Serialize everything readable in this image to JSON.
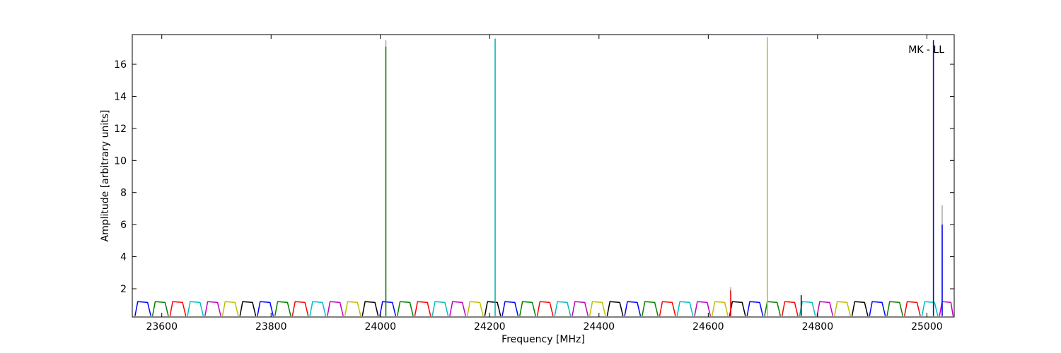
{
  "chart_data": {
    "type": "line",
    "xlabel": "Frequency [MHz]",
    "ylabel": "Amplitude [arbitrary units]",
    "annotation": "MK - LL",
    "xlim": [
      23546,
      25050
    ],
    "ylim": [
      0.24,
      17.85
    ],
    "xticks": [
      23600,
      23800,
      24000,
      24200,
      24400,
      24600,
      24800,
      25000
    ],
    "yticks": [
      2,
      4,
      6,
      8,
      10,
      12,
      14,
      16
    ],
    "grid": false,
    "series": [
      {
        "color": "#aaaaaa",
        "x": [
          24010,
          24010,
          null,
          24210,
          24210,
          null,
          24641,
          24641,
          null,
          24708,
          24708,
          null,
          25012,
          25012,
          null,
          25028,
          25028
        ],
        "values": [
          0.3,
          17.5,
          null,
          0.3,
          17.6,
          null,
          0.3,
          2.1,
          null,
          0.3,
          17.7,
          null,
          0.3,
          17.4,
          null,
          0.3,
          7.2
        ]
      },
      {
        "color": "#0000ff",
        "x": [
          23551,
          23556,
          23574,
          23580,
          null,
          23775,
          23780,
          23798,
          23804,
          null,
          23999,
          24004,
          24022,
          24028,
          null,
          24223,
          24228,
          24246,
          24252,
          null,
          24447,
          24452,
          24470,
          24476,
          null,
          24671,
          24676,
          24694,
          24700,
          null,
          24895,
          24900,
          24918,
          24924
        ],
        "values": [
          0.3,
          1.2,
          1.15,
          0.3,
          null,
          0.3,
          1.2,
          1.15,
          0.3,
          null,
          0.3,
          1.2,
          1.15,
          0.3,
          null,
          0.3,
          1.2,
          1.15,
          0.3,
          null,
          0.3,
          1.2,
          1.15,
          0.3,
          null,
          0.3,
          1.2,
          1.15,
          0.3,
          null,
          0.3,
          1.2,
          1.15,
          0.3
        ]
      },
      {
        "color": "#008000",
        "x": [
          23583,
          23588,
          23606,
          23612,
          null,
          23807,
          23812,
          23830,
          23836,
          null,
          24031,
          24036,
          24054,
          24060,
          null,
          24255,
          24260,
          24278,
          24284,
          null,
          24479,
          24484,
          24502,
          24508,
          null,
          24703,
          24708,
          24726,
          24732,
          null,
          24927,
          24932,
          24950,
          24956
        ],
        "values": [
          0.3,
          1.2,
          1.15,
          0.3,
          null,
          0.3,
          1.2,
          1.15,
          0.3,
          null,
          0.3,
          1.2,
          1.15,
          0.3,
          null,
          0.3,
          1.2,
          1.15,
          0.3,
          null,
          0.3,
          1.2,
          1.15,
          0.3,
          null,
          0.3,
          1.2,
          1.15,
          0.3,
          null,
          0.3,
          1.2,
          1.15,
          0.3
        ]
      },
      {
        "color": "#ff0000",
        "x": [
          23615,
          23620,
          23638,
          23644,
          null,
          23839,
          23844,
          23862,
          23868,
          null,
          24063,
          24068,
          24086,
          24092,
          null,
          24287,
          24292,
          24310,
          24316,
          null,
          24511,
          24516,
          24534,
          24540,
          null,
          24735,
          24740,
          24758,
          24764,
          null,
          24959,
          24964,
          24982,
          24988
        ],
        "values": [
          0.3,
          1.2,
          1.15,
          0.3,
          null,
          0.3,
          1.2,
          1.15,
          0.3,
          null,
          0.3,
          1.2,
          1.15,
          0.3,
          null,
          0.3,
          1.2,
          1.15,
          0.3,
          null,
          0.3,
          1.2,
          1.15,
          0.3,
          null,
          0.3,
          1.2,
          1.15,
          0.3,
          null,
          0.3,
          1.2,
          1.15,
          0.3
        ]
      },
      {
        "color": "#00bfbf",
        "x": [
          23647,
          23652,
          23670,
          23676,
          null,
          23871,
          23876,
          23894,
          23900,
          null,
          24095,
          24100,
          24118,
          24124,
          null,
          24319,
          24324,
          24342,
          24348,
          null,
          24543,
          24548,
          24566,
          24572,
          null,
          24767,
          24772,
          24790,
          24796,
          null,
          24991,
          24996,
          25014,
          25020
        ],
        "values": [
          0.3,
          1.2,
          1.15,
          0.3,
          null,
          0.3,
          1.2,
          1.15,
          0.3,
          null,
          0.3,
          1.2,
          1.15,
          0.3,
          null,
          0.3,
          1.2,
          1.15,
          0.3,
          null,
          0.3,
          1.2,
          1.15,
          0.3,
          null,
          0.3,
          1.2,
          1.15,
          0.3,
          null,
          0.3,
          1.2,
          1.15,
          0.3
        ]
      },
      {
        "color": "#bf00bf",
        "x": [
          23679,
          23684,
          23702,
          23708,
          null,
          23903,
          23908,
          23926,
          23932,
          null,
          24127,
          24132,
          24150,
          24156,
          null,
          24351,
          24356,
          24374,
          24380,
          null,
          24575,
          24580,
          24598,
          24604,
          null,
          24799,
          24804,
          24822,
          24828,
          null,
          25023,
          25028,
          25044,
          25048
        ],
        "values": [
          0.3,
          1.2,
          1.15,
          0.3,
          null,
          0.3,
          1.2,
          1.15,
          0.3,
          null,
          0.3,
          1.2,
          1.15,
          0.3,
          null,
          0.3,
          1.2,
          1.15,
          0.3,
          null,
          0.3,
          1.2,
          1.15,
          0.3,
          null,
          0.3,
          1.2,
          1.15,
          0.3,
          null,
          0.3,
          1.2,
          1.15,
          0.3
        ]
      },
      {
        "color": "#bfbf00",
        "x": [
          23711,
          23716,
          23734,
          23740,
          null,
          23935,
          23940,
          23958,
          23964,
          null,
          24159,
          24164,
          24182,
          24188,
          null,
          24383,
          24388,
          24406,
          24412,
          null,
          24607,
          24612,
          24630,
          24636,
          null,
          24831,
          24836,
          24854,
          24860
        ],
        "values": [
          0.3,
          1.2,
          1.15,
          0.3,
          null,
          0.3,
          1.2,
          1.15,
          0.3,
          null,
          0.3,
          1.2,
          1.15,
          0.3,
          null,
          0.3,
          1.2,
          1.15,
          0.3,
          null,
          0.3,
          1.2,
          1.15,
          0.3,
          null,
          0.3,
          1.2,
          1.15,
          0.3
        ]
      },
      {
        "color": "#000000",
        "x": [
          23743,
          23748,
          23766,
          23772,
          null,
          23967,
          23972,
          23990,
          23996,
          null,
          24191,
          24196,
          24214,
          24220,
          null,
          24415,
          24420,
          24438,
          24444,
          null,
          24639,
          24644,
          24662,
          24668,
          null,
          24863,
          24868,
          24886,
          24892
        ],
        "values": [
          0.3,
          1.2,
          1.15,
          0.3,
          null,
          0.3,
          1.2,
          1.15,
          0.3,
          null,
          0.3,
          1.2,
          1.15,
          0.3,
          null,
          0.3,
          1.2,
          1.15,
          0.3,
          null,
          0.3,
          1.2,
          1.15,
          0.3,
          null,
          0.3,
          1.2,
          1.15,
          0.3
        ]
      },
      {
        "color": "#008000",
        "x": [
          24010,
          24010
        ],
        "values": [
          0.3,
          17.1
        ]
      },
      {
        "color": "#00bfbf",
        "x": [
          24210,
          24210
        ],
        "values": [
          0.3,
          17.6
        ]
      },
      {
        "color": "#ff0000",
        "x": [
          24641,
          24641
        ],
        "values": [
          0.3,
          1.9
        ]
      },
      {
        "color": "#bfbf00",
        "x": [
          24708,
          24708
        ],
        "values": [
          0.3,
          17.4
        ]
      },
      {
        "color": "#000000",
        "x": [
          24770,
          24770
        ],
        "values": [
          0.3,
          1.6
        ]
      },
      {
        "color": "#0000ff",
        "x": [
          25012,
          25012,
          null,
          25028,
          25028
        ],
        "values": [
          0.3,
          17.5,
          null,
          0.3,
          6.0
        ]
      }
    ]
  }
}
